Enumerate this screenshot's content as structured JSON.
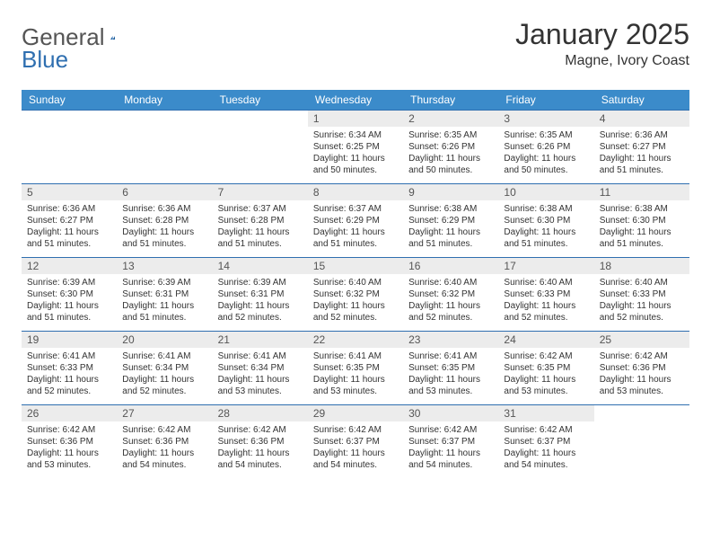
{
  "brand": {
    "general": "General",
    "blue": "Blue"
  },
  "header": {
    "month_title": "January 2025",
    "location": "Magne, Ivory Coast"
  },
  "colors": {
    "header_bg": "#3b8bca",
    "header_text": "#ffffff",
    "border": "#2f6fb0",
    "daynum_bg": "#ececec",
    "text": "#333333"
  },
  "day_labels": [
    "Sunday",
    "Monday",
    "Tuesday",
    "Wednesday",
    "Thursday",
    "Friday",
    "Saturday"
  ],
  "weeks": [
    [
      null,
      null,
      null,
      {
        "n": "1",
        "sr": "Sunrise: 6:34 AM",
        "ss": "Sunset: 6:25 PM",
        "dl": "Daylight: 11 hours and 50 minutes."
      },
      {
        "n": "2",
        "sr": "Sunrise: 6:35 AM",
        "ss": "Sunset: 6:26 PM",
        "dl": "Daylight: 11 hours and 50 minutes."
      },
      {
        "n": "3",
        "sr": "Sunrise: 6:35 AM",
        "ss": "Sunset: 6:26 PM",
        "dl": "Daylight: 11 hours and 50 minutes."
      },
      {
        "n": "4",
        "sr": "Sunrise: 6:36 AM",
        "ss": "Sunset: 6:27 PM",
        "dl": "Daylight: 11 hours and 51 minutes."
      }
    ],
    [
      {
        "n": "5",
        "sr": "Sunrise: 6:36 AM",
        "ss": "Sunset: 6:27 PM",
        "dl": "Daylight: 11 hours and 51 minutes."
      },
      {
        "n": "6",
        "sr": "Sunrise: 6:36 AM",
        "ss": "Sunset: 6:28 PM",
        "dl": "Daylight: 11 hours and 51 minutes."
      },
      {
        "n": "7",
        "sr": "Sunrise: 6:37 AM",
        "ss": "Sunset: 6:28 PM",
        "dl": "Daylight: 11 hours and 51 minutes."
      },
      {
        "n": "8",
        "sr": "Sunrise: 6:37 AM",
        "ss": "Sunset: 6:29 PM",
        "dl": "Daylight: 11 hours and 51 minutes."
      },
      {
        "n": "9",
        "sr": "Sunrise: 6:38 AM",
        "ss": "Sunset: 6:29 PM",
        "dl": "Daylight: 11 hours and 51 minutes."
      },
      {
        "n": "10",
        "sr": "Sunrise: 6:38 AM",
        "ss": "Sunset: 6:30 PM",
        "dl": "Daylight: 11 hours and 51 minutes."
      },
      {
        "n": "11",
        "sr": "Sunrise: 6:38 AM",
        "ss": "Sunset: 6:30 PM",
        "dl": "Daylight: 11 hours and 51 minutes."
      }
    ],
    [
      {
        "n": "12",
        "sr": "Sunrise: 6:39 AM",
        "ss": "Sunset: 6:30 PM",
        "dl": "Daylight: 11 hours and 51 minutes."
      },
      {
        "n": "13",
        "sr": "Sunrise: 6:39 AM",
        "ss": "Sunset: 6:31 PM",
        "dl": "Daylight: 11 hours and 51 minutes."
      },
      {
        "n": "14",
        "sr": "Sunrise: 6:39 AM",
        "ss": "Sunset: 6:31 PM",
        "dl": "Daylight: 11 hours and 52 minutes."
      },
      {
        "n": "15",
        "sr": "Sunrise: 6:40 AM",
        "ss": "Sunset: 6:32 PM",
        "dl": "Daylight: 11 hours and 52 minutes."
      },
      {
        "n": "16",
        "sr": "Sunrise: 6:40 AM",
        "ss": "Sunset: 6:32 PM",
        "dl": "Daylight: 11 hours and 52 minutes."
      },
      {
        "n": "17",
        "sr": "Sunrise: 6:40 AM",
        "ss": "Sunset: 6:33 PM",
        "dl": "Daylight: 11 hours and 52 minutes."
      },
      {
        "n": "18",
        "sr": "Sunrise: 6:40 AM",
        "ss": "Sunset: 6:33 PM",
        "dl": "Daylight: 11 hours and 52 minutes."
      }
    ],
    [
      {
        "n": "19",
        "sr": "Sunrise: 6:41 AM",
        "ss": "Sunset: 6:33 PM",
        "dl": "Daylight: 11 hours and 52 minutes."
      },
      {
        "n": "20",
        "sr": "Sunrise: 6:41 AM",
        "ss": "Sunset: 6:34 PM",
        "dl": "Daylight: 11 hours and 52 minutes."
      },
      {
        "n": "21",
        "sr": "Sunrise: 6:41 AM",
        "ss": "Sunset: 6:34 PM",
        "dl": "Daylight: 11 hours and 53 minutes."
      },
      {
        "n": "22",
        "sr": "Sunrise: 6:41 AM",
        "ss": "Sunset: 6:35 PM",
        "dl": "Daylight: 11 hours and 53 minutes."
      },
      {
        "n": "23",
        "sr": "Sunrise: 6:41 AM",
        "ss": "Sunset: 6:35 PM",
        "dl": "Daylight: 11 hours and 53 minutes."
      },
      {
        "n": "24",
        "sr": "Sunrise: 6:42 AM",
        "ss": "Sunset: 6:35 PM",
        "dl": "Daylight: 11 hours and 53 minutes."
      },
      {
        "n": "25",
        "sr": "Sunrise: 6:42 AM",
        "ss": "Sunset: 6:36 PM",
        "dl": "Daylight: 11 hours and 53 minutes."
      }
    ],
    [
      {
        "n": "26",
        "sr": "Sunrise: 6:42 AM",
        "ss": "Sunset: 6:36 PM",
        "dl": "Daylight: 11 hours and 53 minutes."
      },
      {
        "n": "27",
        "sr": "Sunrise: 6:42 AM",
        "ss": "Sunset: 6:36 PM",
        "dl": "Daylight: 11 hours and 54 minutes."
      },
      {
        "n": "28",
        "sr": "Sunrise: 6:42 AM",
        "ss": "Sunset: 6:36 PM",
        "dl": "Daylight: 11 hours and 54 minutes."
      },
      {
        "n": "29",
        "sr": "Sunrise: 6:42 AM",
        "ss": "Sunset: 6:37 PM",
        "dl": "Daylight: 11 hours and 54 minutes."
      },
      {
        "n": "30",
        "sr": "Sunrise: 6:42 AM",
        "ss": "Sunset: 6:37 PM",
        "dl": "Daylight: 11 hours and 54 minutes."
      },
      {
        "n": "31",
        "sr": "Sunrise: 6:42 AM",
        "ss": "Sunset: 6:37 PM",
        "dl": "Daylight: 11 hours and 54 minutes."
      },
      null
    ]
  ]
}
